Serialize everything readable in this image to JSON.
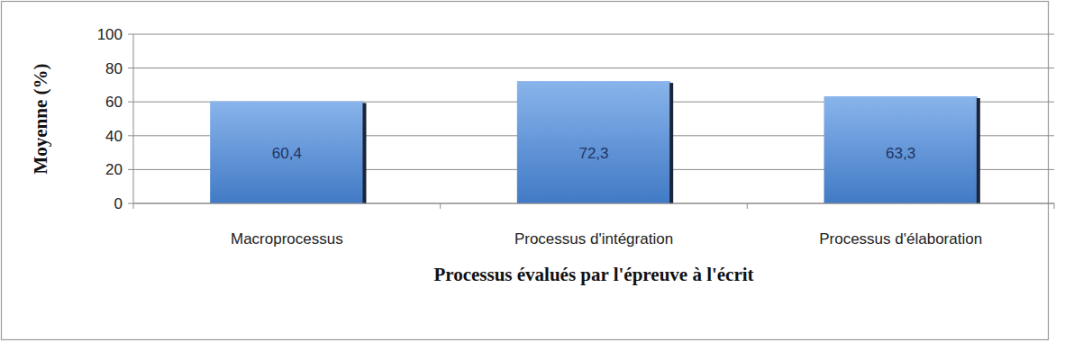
{
  "chart_data": {
    "type": "bar",
    "categories": [
      "Macroprocessus",
      "Processus d'intégration",
      "Processus d'élaboration"
    ],
    "values": [
      60.4,
      72.3,
      63.3
    ],
    "value_labels": [
      "60,4",
      "72,3",
      "63,3"
    ],
    "data_labels": true,
    "color": "#4a8be0",
    "x_label": "Processus évalués par l'épreuve à l'écrit",
    "y_label": "Moyenne (%)",
    "ylim": [
      0,
      100
    ],
    "yticks": [
      0,
      20,
      40,
      60,
      80,
      100
    ],
    "grid": true
  }
}
